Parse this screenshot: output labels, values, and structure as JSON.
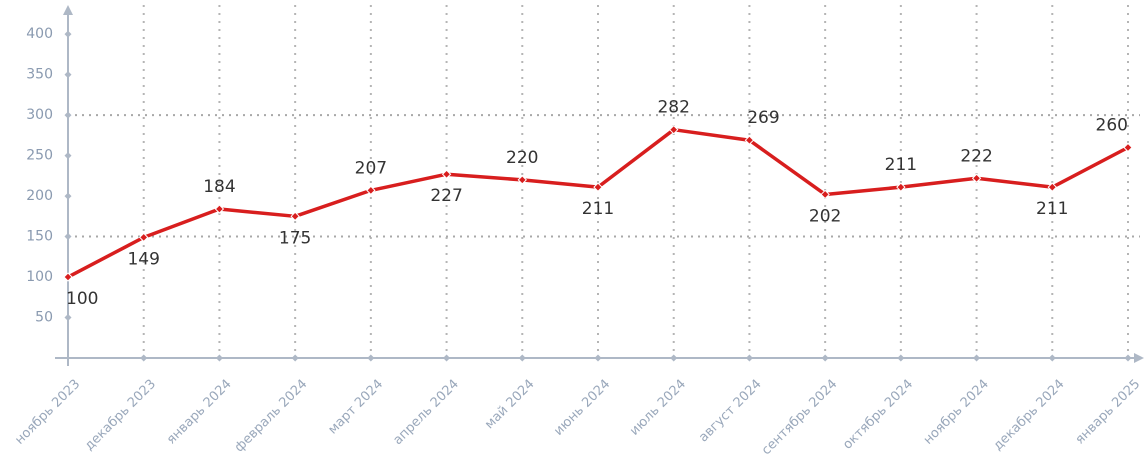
{
  "chart_data": {
    "type": "line",
    "categories": [
      "ноябрь 2023",
      "декабрь 2023",
      "январь 2024",
      "февраль 2024",
      "март 2024",
      "апрель 2024",
      "май 2024",
      "июнь 2024",
      "июль 2024",
      "август 2024",
      "сентябрь 2024",
      "октябрь 2024",
      "ноябрь 2024",
      "декабрь 2024",
      "январь 2025"
    ],
    "values": [
      100,
      149,
      184,
      175,
      207,
      227,
      220,
      211,
      282,
      269,
      202,
      211,
      222,
      211,
      260
    ],
    "color": "#d81e1e",
    "ylim": [
      0,
      436
    ],
    "yticks": [
      50,
      100,
      150,
      200,
      250,
      300,
      350,
      400
    ],
    "reference_lines": [
      150,
      300
    ],
    "grid": true
  }
}
